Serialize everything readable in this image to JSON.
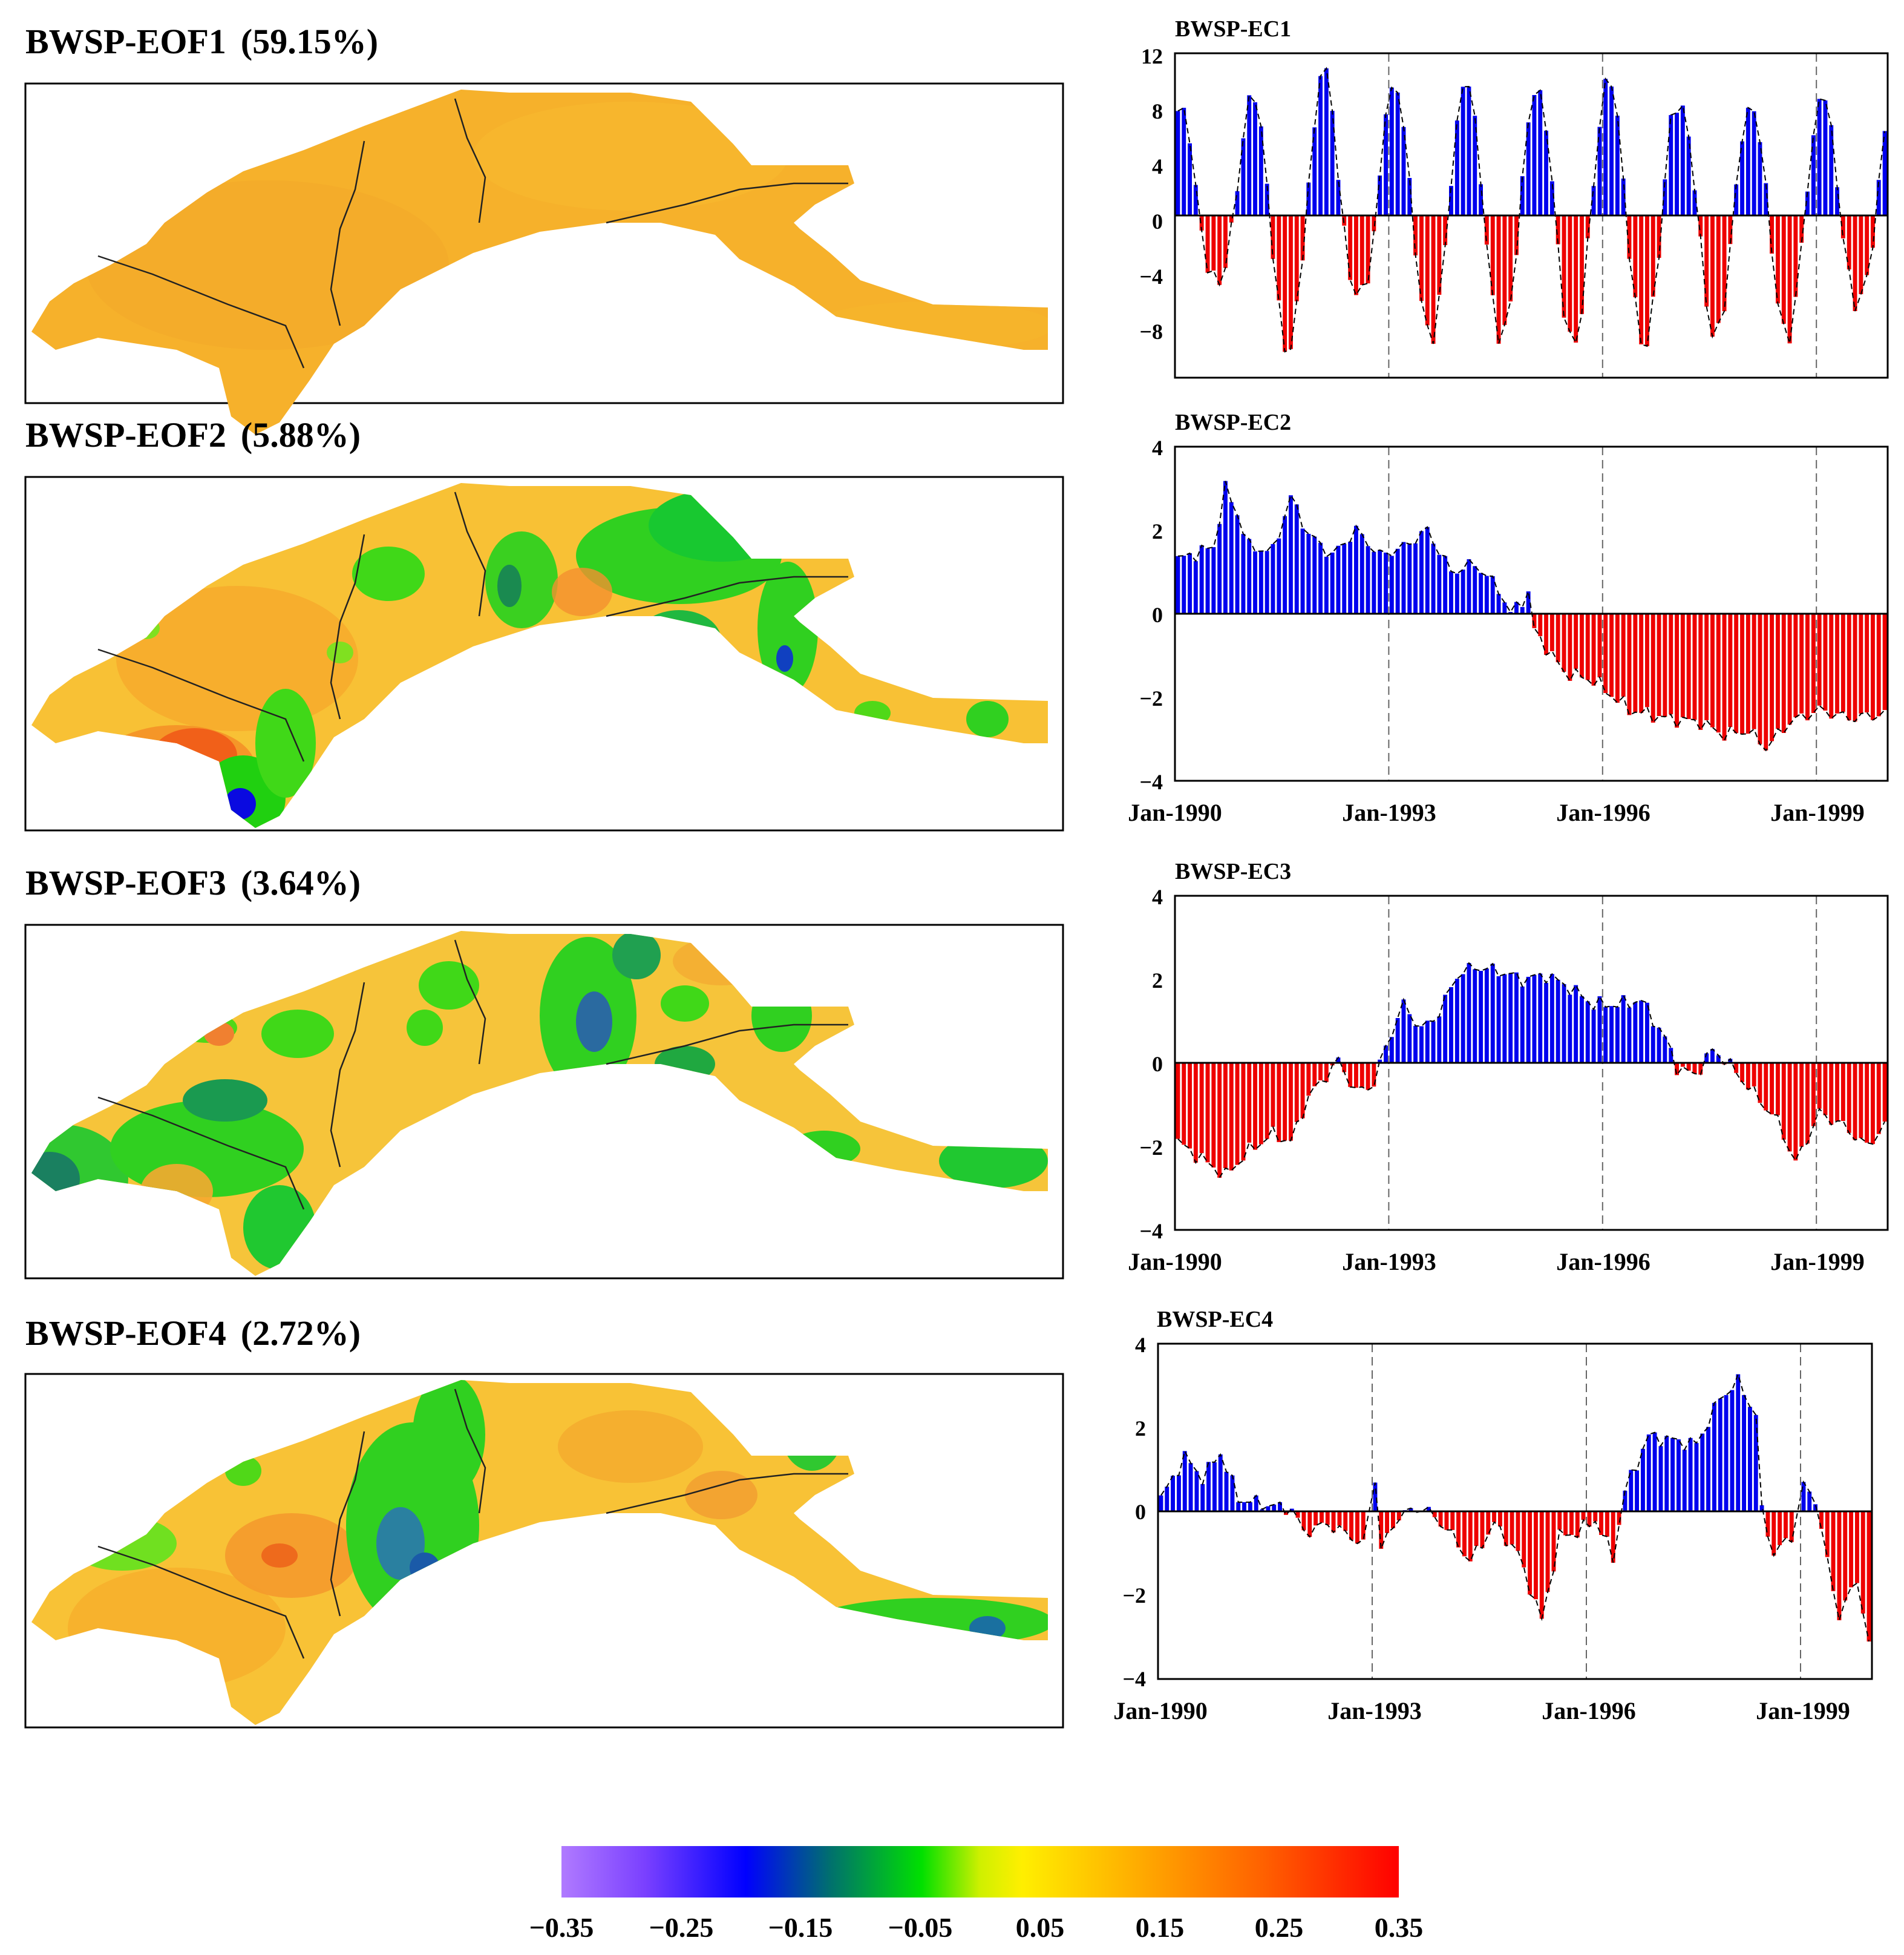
{
  "colors": {
    "positive_bar": "#0000ee",
    "negative_bar": "#ee0000",
    "boundary": "#222222",
    "frame": "#000000"
  },
  "maps": [
    {
      "title": "BWSP-EOF1",
      "percent": "(59.15%)",
      "pattern": "uniform-orange"
    },
    {
      "title": "BWSP-EOF2",
      "percent": "(5.88%)",
      "pattern": "east-green"
    },
    {
      "title": "BWSP-EOF3",
      "percent": "(3.64%)",
      "pattern": "mixed-green"
    },
    {
      "title": "BWSP-EOF4",
      "percent": "(2.72%)",
      "pattern": "central-green"
    }
  ],
  "chart_data": [
    {
      "type": "bar",
      "title": "BWSP-EC1",
      "ylim": [
        -12,
        12
      ],
      "yticks": [
        "12",
        "8",
        "4",
        "0",
        "−4",
        "−8"
      ],
      "xticks": [],
      "x_start": "Jan-1990",
      "months": 120,
      "shape": "seasonal",
      "amp_pos": [
        8,
        9,
        11,
        9.5,
        10,
        9.3,
        10.2,
        8.2,
        8,
        9
      ],
      "amp_neg": [
        5,
        10,
        6,
        9,
        9,
        9.6,
        9.6,
        9,
        9,
        6.5
      ]
    },
    {
      "type": "bar",
      "title": "BWSP-EC2",
      "ylim": [
        -4,
        4
      ],
      "yticks": [
        "4",
        "2",
        "0",
        "−2",
        "−4"
      ],
      "xticks": [
        "Jan-1990",
        "Jan-1993",
        "Jan-1996",
        "Jan-1999"
      ],
      "months": 120,
      "shape": "trend",
      "knots": [
        [
          0,
          1.3
        ],
        [
          6,
          1.6
        ],
        [
          8,
          3.0
        ],
        [
          10,
          2.4
        ],
        [
          12,
          1.6
        ],
        [
          16,
          1.5
        ],
        [
          19,
          2.8
        ],
        [
          22,
          1.9
        ],
        [
          26,
          1.4
        ],
        [
          30,
          2.0
        ],
        [
          34,
          1.4
        ],
        [
          38,
          1.6
        ],
        [
          42,
          2.0
        ],
        [
          46,
          1.0
        ],
        [
          50,
          1.2
        ],
        [
          54,
          0.6
        ],
        [
          56,
          0.0
        ],
        [
          59,
          0.5
        ],
        [
          60,
          -0.4
        ],
        [
          65,
          -1.4
        ],
        [
          70,
          -1.6
        ],
        [
          76,
          -2.3
        ],
        [
          82,
          -2.5
        ],
        [
          88,
          -2.6
        ],
        [
          92,
          -2.9
        ],
        [
          96,
          -2.8
        ],
        [
          99,
          -3.2
        ],
        [
          103,
          -2.6
        ],
        [
          108,
          -2.3
        ],
        [
          113,
          -2.5
        ],
        [
          119,
          -2.4
        ]
      ]
    },
    {
      "type": "bar",
      "title": "BWSP-EC3",
      "ylim": [
        -4,
        4
      ],
      "yticks": [
        "4",
        "2",
        "0",
        "−2",
        "−4"
      ],
      "xticks": [
        "Jan-1990",
        "Jan-1993",
        "Jan-1996",
        "Jan-1999"
      ],
      "months": 120,
      "shape": "trend",
      "knots": [
        [
          0,
          -1.9
        ],
        [
          4,
          -2.3
        ],
        [
          8,
          -2.7
        ],
        [
          12,
          -2.1
        ],
        [
          16,
          -1.7
        ],
        [
          19,
          -1.9
        ],
        [
          22,
          -0.8
        ],
        [
          25,
          -0.3
        ],
        [
          27,
          0.05
        ],
        [
          30,
          -0.7
        ],
        [
          33,
          -0.5
        ],
        [
          35,
          0.4
        ],
        [
          38,
          1.4
        ],
        [
          41,
          0.8
        ],
        [
          44,
          1.2
        ],
        [
          47,
          2.1
        ],
        [
          50,
          2.3
        ],
        [
          54,
          2.2
        ],
        [
          58,
          2.0
        ],
        [
          62,
          2.1
        ],
        [
          66,
          1.8
        ],
        [
          70,
          1.4
        ],
        [
          74,
          1.4
        ],
        [
          78,
          1.5
        ],
        [
          82,
          0.6
        ],
        [
          84,
          -0.1
        ],
        [
          87,
          -0.3
        ],
        [
          90,
          0.3
        ],
        [
          92,
          0.1
        ],
        [
          95,
          -0.4
        ],
        [
          98,
          -0.9
        ],
        [
          101,
          -1.4
        ],
        [
          104,
          -2.4
        ],
        [
          108,
          -1.2
        ],
        [
          112,
          -1.5
        ],
        [
          116,
          -2.0
        ],
        [
          119,
          -1.5
        ]
      ]
    },
    {
      "type": "bar",
      "title": "BWSP-EC4",
      "ylim": [
        -4,
        4
      ],
      "yticks": [
        "4",
        "2",
        "0",
        "−2",
        "−4"
      ],
      "xticks": [
        "Jan-1990",
        "Jan-1993",
        "Jan-1996",
        "Jan-1999"
      ],
      "months": 120,
      "shape": "trend",
      "knots": [
        [
          0,
          0.3
        ],
        [
          4,
          1.3
        ],
        [
          7,
          0.8
        ],
        [
          10,
          1.4
        ],
        [
          13,
          0.3
        ],
        [
          18,
          0.15
        ],
        [
          22,
          0.05
        ],
        [
          24,
          -0.5
        ],
        [
          28,
          -0.3
        ],
        [
          32,
          -0.6
        ],
        [
          34,
          -0.8
        ],
        [
          36,
          0.8
        ],
        [
          37,
          -0.9
        ],
        [
          40,
          -0.1
        ],
        [
          44,
          0.1
        ],
        [
          48,
          -0.4
        ],
        [
          52,
          -1.2
        ],
        [
          56,
          -0.3
        ],
        [
          60,
          -1.0
        ],
        [
          64,
          -2.6
        ],
        [
          67,
          -0.6
        ],
        [
          70,
          -0.5
        ],
        [
          73,
          -0.2
        ],
        [
          76,
          -1.1
        ],
        [
          78,
          0.5
        ],
        [
          82,
          1.8
        ],
        [
          86,
          1.7
        ],
        [
          90,
          1.6
        ],
        [
          94,
          2.7
        ],
        [
          97,
          3.1
        ],
        [
          100,
          2.3
        ],
        [
          101,
          0.0
        ],
        [
          103,
          -1.0
        ],
        [
          106,
          -0.6
        ],
        [
          108,
          0.6
        ],
        [
          110,
          0.3
        ],
        [
          112,
          -1.2
        ],
        [
          114,
          -2.5
        ],
        [
          117,
          -1.6
        ],
        [
          119,
          -3.2
        ]
      ]
    }
  ],
  "colorbar": {
    "ticks": [
      "−0.35",
      "−0.25",
      "−0.15",
      "−0.05",
      "0.05",
      "0.15",
      "0.25",
      "0.35"
    ]
  }
}
